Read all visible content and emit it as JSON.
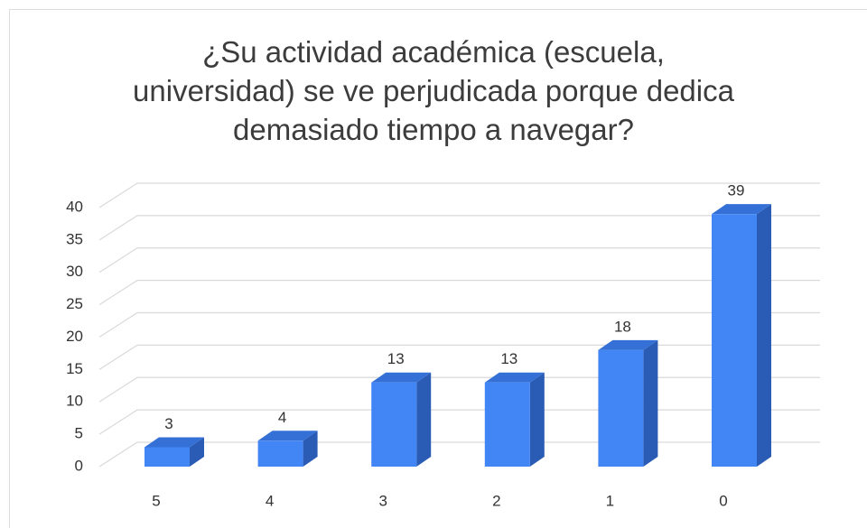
{
  "chart_data": {
    "type": "bar3d",
    "title": "¿Su actividad académica (escuela, universidad) se ve perjudicada porque dedica demasiado tiempo a navegar?",
    "categories": [
      "5",
      "4",
      "3",
      "2",
      "1",
      "0"
    ],
    "values": [
      3,
      4,
      13,
      13,
      18,
      39
    ],
    "color": "#4285f4",
    "ylim": [
      0,
      40
    ],
    "yticks": [
      0,
      5,
      10,
      15,
      20,
      25,
      30,
      35,
      40
    ],
    "grid": true
  }
}
